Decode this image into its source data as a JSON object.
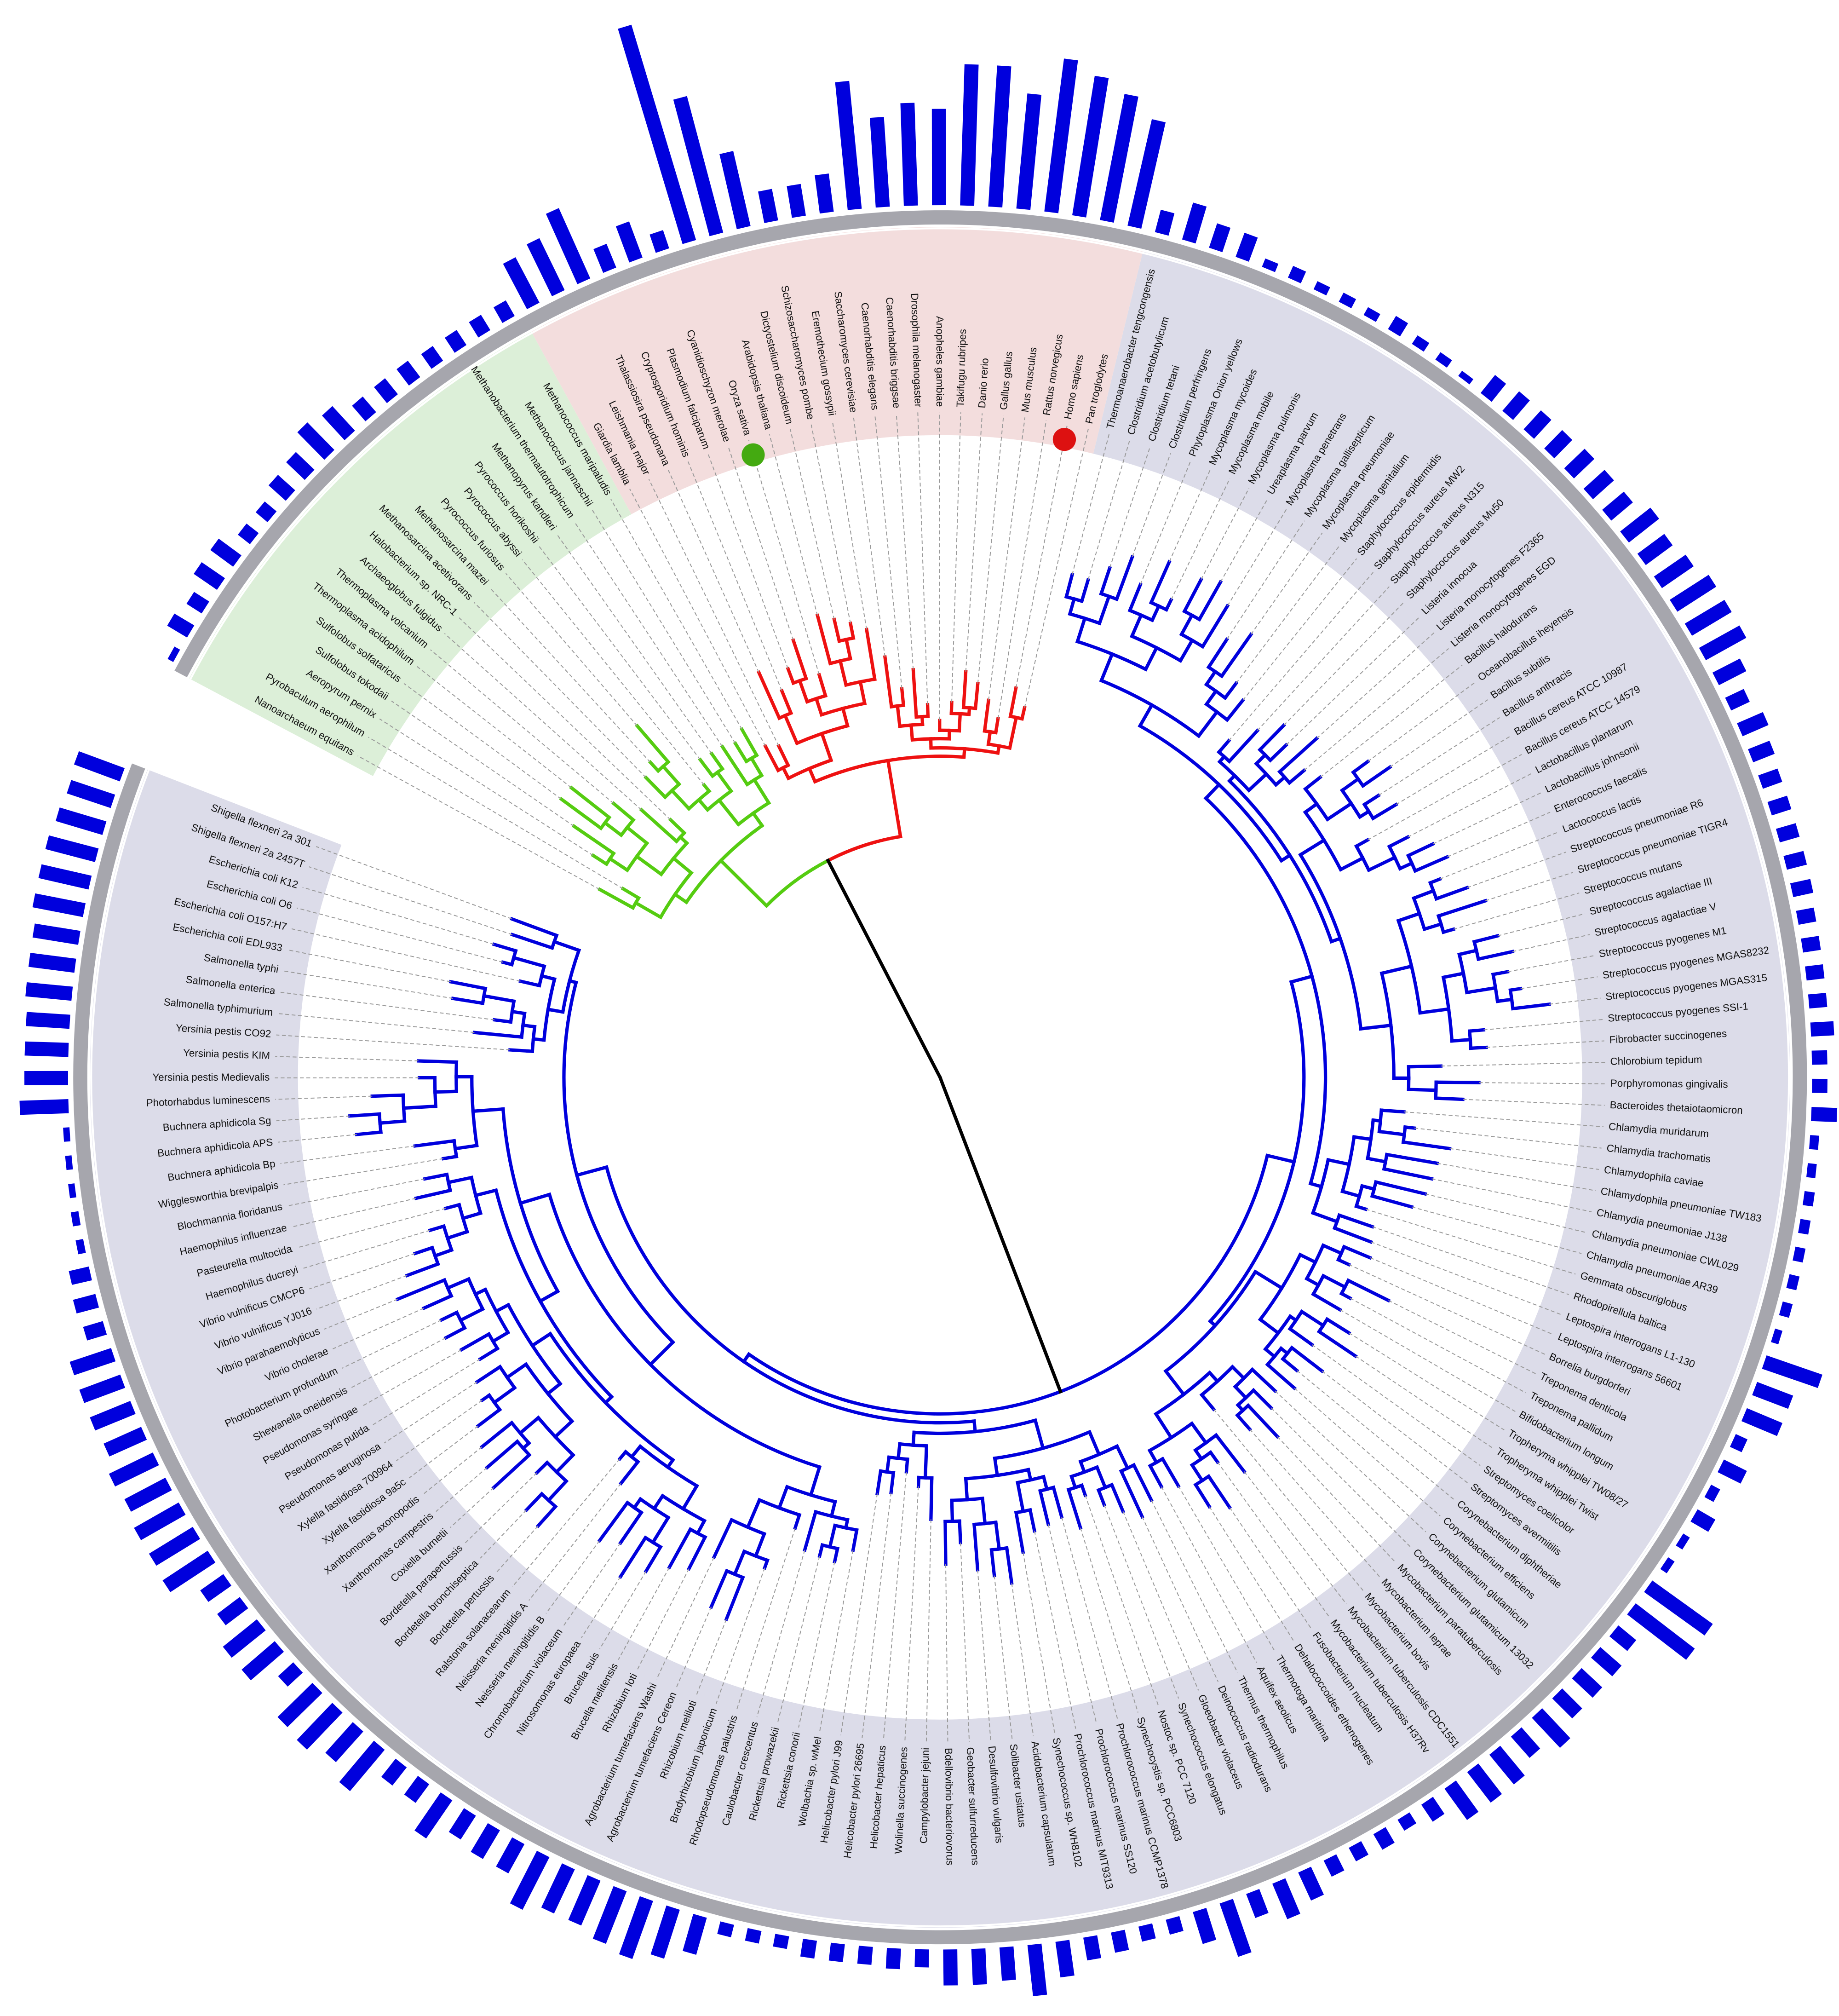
{
  "tree": {
    "leaves": [
      {
        "label": "Shigella flexneri 2a 301",
        "bar": 38
      },
      {
        "label": "Shigella flexneri 2a 2457T",
        "bar": 36
      },
      {
        "label": "Escherichia coli K12",
        "bar": 38
      },
      {
        "label": "Escherichia coli O6",
        "bar": 40
      },
      {
        "label": "Escherichia coli O157:H7",
        "bar": 40
      },
      {
        "label": "Escherichia coli EDL933",
        "bar": 40
      },
      {
        "label": "Salmonella typhi",
        "bar": 36
      },
      {
        "label": "Salmonella enterica",
        "bar": 36
      },
      {
        "label": "Salmonella typhimurium",
        "bar": 36
      },
      {
        "label": "Yersinia pestis CO92",
        "bar": 34
      },
      {
        "label": "Yersinia pestis KIM",
        "bar": 34
      },
      {
        "label": "Yersinia pestis Medievalis",
        "bar": 34
      },
      {
        "label": "Photorhabdus luminescens",
        "bar": 38
      },
      {
        "label": "Buchnera aphidicola Sg",
        "bar": 5
      },
      {
        "label": "Buchnera aphidicola APS",
        "bar": 5
      },
      {
        "label": "Buchnera aphidicola Bp",
        "bar": 5
      },
      {
        "label": "Wigglesworthia brevipalpis",
        "bar": 6
      },
      {
        "label": "Blochmannia floridanus",
        "bar": 6
      },
      {
        "label": "Haemophilus influenzae",
        "bar": 16
      },
      {
        "label": "Pasteurella multocida",
        "bar": 18
      },
      {
        "label": "Haemophilus ducreyi",
        "bar": 16
      },
      {
        "label": "Vibrio vulnificus CMCP6",
        "bar": 34
      },
      {
        "label": "Vibrio vulnificus YJ016",
        "bar": 34
      },
      {
        "label": "Vibrio parahaemolyticus",
        "bar": 34
      },
      {
        "label": "Vibrio cholerae",
        "bar": 32
      },
      {
        "label": "Photobacterium profundum",
        "bar": 38
      },
      {
        "label": "Shewanella oneidensis",
        "bar": 36
      },
      {
        "label": "Pseudomonas syringae",
        "bar": 40
      },
      {
        "label": "Pseudomonas putida",
        "bar": 40
      },
      {
        "label": "Pseudomonas aeruginosa",
        "bar": 42
      },
      {
        "label": "Xylella fastidiosa 700964",
        "bar": 22
      },
      {
        "label": "Xylella fastidiosa 9a5c",
        "bar": 22
      },
      {
        "label": "Xanthomonas axonopodis",
        "bar": 34
      },
      {
        "label": "Xanthomonas campestris",
        "bar": 34
      },
      {
        "label": "Coxiella burnetii",
        "bar": 16
      },
      {
        "label": "Bordetella parapertussis",
        "bar": 38
      },
      {
        "label": "Bordetella bronchiseptica",
        "bar": 40
      },
      {
        "label": "Bordetella pertussis",
        "bar": 32
      },
      {
        "label": "Ralstonia solanacearum",
        "bar": 42
      },
      {
        "label": "Neisseria meningitidis A",
        "bar": 18
      },
      {
        "label": "Neisseria meningitidis B",
        "bar": 18
      },
      {
        "label": "Chromobacterium violaceum",
        "bar": 36
      },
      {
        "label": "Nitrosomonas europaea",
        "bar": 22
      },
      {
        "label": "Brucella suis",
        "bar": 26
      },
      {
        "label": "Brucella melitensis",
        "bar": 26
      },
      {
        "label": "Rhizobium loti",
        "bar": 46
      },
      {
        "label": "Agrobacterium tumefaciens Washi",
        "bar": 38
      },
      {
        "label": "Agrobacterium tumefaciens Cereon",
        "bar": 38
      },
      {
        "label": "Rhizobium meliloti",
        "bar": 44
      },
      {
        "label": "Bradyrhizobium japonicum",
        "bar": 48
      },
      {
        "label": "Rhodopseudomonas palustris",
        "bar": 40
      },
      {
        "label": "Caulobacter crescentus",
        "bar": 30
      },
      {
        "label": "Rickettsia prowazekii",
        "bar": 10
      },
      {
        "label": "Rickettsia conorii",
        "bar": 10
      },
      {
        "label": "Wolbachia sp. wMel",
        "bar": 10
      },
      {
        "label": "Helicobacter pylori J99",
        "bar": 14
      },
      {
        "label": "Helicobacter pylori 26695",
        "bar": 14
      },
      {
        "label": "Helicobacter hepaticus",
        "bar": 14
      },
      {
        "label": "Wolinella succinogenes",
        "bar": 16
      },
      {
        "label": "Campylobacter jejuni",
        "bar": 14
      },
      {
        "label": "Bdellovibrio bacteriovorus",
        "bar": 28
      },
      {
        "label": "Geobacter sulfurreducens",
        "bar": 28
      },
      {
        "label": "Desulfovibrio vulgaris",
        "bar": 26
      },
      {
        "label": "Solibacter usitatus",
        "bar": 40
      },
      {
        "label": "Acidobacterium capsulatum",
        "bar": 28
      },
      {
        "label": "Synechococcus sp. WH8102",
        "bar": 18
      },
      {
        "label": "Prochlorococcus marinus MIT9313",
        "bar": 16
      },
      {
        "label": "Prochlorococcus marinus SS120",
        "bar": 12
      },
      {
        "label": "Prochlorococcus marinus CCMP1378",
        "bar": 12
      },
      {
        "label": "Synechocystis sp. PCC6803",
        "bar": 26
      },
      {
        "label": "Nostoc sp. PCC 7120",
        "bar": 44
      },
      {
        "label": "Synechococcus elongatus",
        "bar": 20
      },
      {
        "label": "Gloeobacter violaceus",
        "bar": 30
      },
      {
        "label": "Deinococcus radiodurans",
        "bar": 24
      },
      {
        "label": "Thermus thermophilus",
        "bar": 14
      },
      {
        "label": "Aquifex aeolicus",
        "bar": 12
      },
      {
        "label": "Thermotoga maritima",
        "bar": 14
      },
      {
        "label": "Dehalococcoides ethenogenes",
        "bar": 10
      },
      {
        "label": "Fusobacterium nucleatum",
        "bar": 16
      },
      {
        "label": "Mycobacterium tuberculosis H37Rv",
        "bar": 30
      },
      {
        "label": "Mycobacterium tuberculosis CDC1551",
        "bar": 30
      },
      {
        "label": "Mycobacterium bovis",
        "bar": 30
      },
      {
        "label": "Mycobacterium leprae",
        "bar": 22
      },
      {
        "label": "Mycobacterium paratuberculosis",
        "bar": 32
      },
      {
        "label": "Corynebacterium glutamicum 13032",
        "bar": 22
      },
      {
        "label": "Corynebacterium glutamicum",
        "bar": 22
      },
      {
        "label": "Corynebacterium efficiens",
        "bar": 22
      },
      {
        "label": "Corynebacterium diphtheriae",
        "bar": 18
      },
      {
        "label": "Streptomyces avermitilis",
        "bar": 58
      },
      {
        "label": "Streptomyces coelicolor",
        "bar": 58
      },
      {
        "label": "Tropheryma whipplei Twist",
        "bar": 6
      },
      {
        "label": "Tropheryma whipplei TW08/27",
        "bar": 6
      },
      {
        "label": "Bifidobacterium longum",
        "bar": 16
      },
      {
        "label": "Treponema pallidum",
        "bar": 8
      },
      {
        "label": "Treponema denticola",
        "bar": 20
      },
      {
        "label": "Borrelia burgdorferi",
        "bar": 10
      },
      {
        "label": "Leptospira interrogans 56601",
        "bar": 30
      },
      {
        "label": "Leptospira interrogans L1-130",
        "bar": 30
      },
      {
        "label": "Rhodopirellula baltica",
        "bar": 46
      },
      {
        "label": "Gemmata obscuriglobus",
        "bar": 6
      },
      {
        "label": "Chlamydia pneumoniae AR39",
        "bar": 8
      },
      {
        "label": "Chlamydia pneumoniae CWL029",
        "bar": 8
      },
      {
        "label": "Chlamydia pneumoniae J138",
        "bar": 8
      },
      {
        "label": "Chlamydophila pneumoniae TW183",
        "bar": 8
      },
      {
        "label": "Chlamydophila caviae",
        "bar": 8
      },
      {
        "label": "Chlamydia trachomatis",
        "bar": 7
      },
      {
        "label": "Chlamydia muridarum",
        "bar": 7
      },
      {
        "label": "Bacteroides thetaiotaomicron",
        "bar": 20
      },
      {
        "label": "Porphyromonas gingivalis",
        "bar": 12
      },
      {
        "label": "Chlorobium tepidum",
        "bar": 12
      },
      {
        "label": "Fibrobacter succinogenes",
        "bar": 18
      },
      {
        "label": "Streptococcus pyogenes SSI-1",
        "bar": 14
      },
      {
        "label": "Streptococcus pyogenes MGAS315",
        "bar": 14
      },
      {
        "label": "Streptococcus pyogenes MGAS8232",
        "bar": 14
      },
      {
        "label": "Streptococcus pyogenes M1",
        "bar": 14
      },
      {
        "label": "Streptococcus agalactiae V",
        "bar": 16
      },
      {
        "label": "Streptococcus agalactiae III",
        "bar": 16
      },
      {
        "label": "Streptococcus mutans",
        "bar": 16
      },
      {
        "label": "Streptococcus pneumoniae TIGR4",
        "bar": 16
      },
      {
        "label": "Streptococcus pneumoniae R6",
        "bar": 16
      },
      {
        "label": "Lactococcus lactis",
        "bar": 18
      },
      {
        "label": "Enterococcus faecalis",
        "bar": 22
      },
      {
        "label": "Lactobacillus johnsonii",
        "bar": 16
      },
      {
        "label": "Lactobacillus plantarum",
        "bar": 24
      },
      {
        "label": "Bacillus cereus ATCC 14579",
        "bar": 36
      },
      {
        "label": "Bacillus cereus ATCC 10987",
        "bar": 36
      },
      {
        "label": "Bacillus anthracis",
        "bar": 36
      },
      {
        "label": "Bacillus subtilis",
        "bar": 30
      },
      {
        "label": "Oceanobacillus iheyensis",
        "bar": 26
      },
      {
        "label": "Bacillus halodurans",
        "bar": 30
      },
      {
        "label": "Listeria monocytogenes EGD",
        "bar": 22
      },
      {
        "label": "Listeria monocytogenes F2365",
        "bar": 22
      },
      {
        "label": "Listeria innocua",
        "bar": 22
      },
      {
        "label": "Staphylococcus aureus Mu50",
        "bar": 20
      },
      {
        "label": "Staphylococcus aureus N315",
        "bar": 20
      },
      {
        "label": "Staphylococcus aureus MW2",
        "bar": 20
      },
      {
        "label": "Staphylococcus epidermidis",
        "bar": 18
      },
      {
        "label": "Mycoplasma genitalium",
        "bar": 5
      },
      {
        "label": "Mycoplasma pneumoniae",
        "bar": 7
      },
      {
        "label": "Mycoplasma gallisepticum",
        "bar": 8
      },
      {
        "label": "Mycoplasma penetrans",
        "bar": 12
      },
      {
        "label": "Ureaplasma parvum",
        "bar": 7
      },
      {
        "label": "Mycoplasma pulmonis",
        "bar": 8
      },
      {
        "label": "Mycoplasma mobile",
        "bar": 7
      },
      {
        "label": "Mycoplasma mycoides",
        "bar": 10
      },
      {
        "label": "Phytoplasma Onion yellows",
        "bar": 7
      },
      {
        "label": "Clostridium perfringens",
        "bar": 20
      },
      {
        "label": "Clostridium tetani",
        "bar": 20
      },
      {
        "label": "Clostridium acetobutylicum",
        "bar": 30
      },
      {
        "label": "Thermoanaerobacter tengcongensis",
        "bar": 18
      },
      {
        "label": "Pan troglodytes",
        "bar": 85
      },
      {
        "label": "Homo sapiens",
        "bar": 100
      },
      {
        "label": "Rattus norvegicus",
        "bar": 110
      },
      {
        "label": "Mus musculus",
        "bar": 120
      },
      {
        "label": "Gallus gallus",
        "bar": 90
      },
      {
        "label": "Danio rerio",
        "bar": 110
      },
      {
        "label": "Takifugu rubripes",
        "bar": 110
      },
      {
        "label": "Anopheles gambiae",
        "bar": 75
      },
      {
        "label": "Drosophila melanogaster",
        "bar": 80
      },
      {
        "label": "Caenorhabditis briggsae",
        "bar": 70
      },
      {
        "label": "Caenorhabditis elegans",
        "bar": 100
      },
      {
        "label": "Saccharomyces cerevisiae",
        "bar": 30
      },
      {
        "label": "Eremothecium gossypii",
        "bar": 25
      },
      {
        "label": "Schizosaccharomyces pombe",
        "bar": 25
      },
      {
        "label": "Dictyostelium discoideum",
        "bar": 60
      },
      {
        "label": "Arabidopsis thaliana",
        "bar": 110
      },
      {
        "label": "Oryza sativa",
        "bar": 175
      },
      {
        "label": "Cyanidioschyzon merolae",
        "bar": 15
      },
      {
        "label": "Plasmodium falciparum",
        "bar": 30
      },
      {
        "label": "Cryptosporidium hominis",
        "bar": 20
      },
      {
        "label": "Thalassiosira pseudonana",
        "bar": 60
      },
      {
        "label": "Leishmania major",
        "bar": 45
      },
      {
        "label": "Giardia lamblia",
        "bar": 40
      },
      {
        "label": "Methanococcus maripaludis",
        "bar": 14
      },
      {
        "label": "Methanococcus jannaschii",
        "bar": 14
      },
      {
        "label": "Methanobacterium thermautotrophicum",
        "bar": 14
      },
      {
        "label": "Methanopyrus kandleri",
        "bar": 14
      },
      {
        "label": "Pyrococcus horikoshii",
        "bar": 16
      },
      {
        "label": "Pyrococcus abyssi",
        "bar": 16
      },
      {
        "label": "Pyrococcus furiosus",
        "bar": 16
      },
      {
        "label": "Methanosarcina mazei",
        "bar": 26
      },
      {
        "label": "Methanosarcina acetivorans",
        "bar": 30
      },
      {
        "label": "Halobacterium sp. NRC-1",
        "bar": 20
      },
      {
        "label": "Archaeoglobus fulgidus",
        "bar": 18
      },
      {
        "label": "Thermoplasma volcanium",
        "bar": 12
      },
      {
        "label": "Thermoplasma acidophilum",
        "bar": 12
      },
      {
        "label": "Sulfolobus solfataricus",
        "bar": 22
      },
      {
        "label": "Sulfolobus tokodaii",
        "bar": 22
      },
      {
        "label": "Aeropyrum pernix",
        "bar": 14
      },
      {
        "label": "Pyrobaculum aerophilum",
        "bar": 18
      },
      {
        "label": "Nanoarchaeum equitans",
        "bar": 5
      }
    ]
  }
}
